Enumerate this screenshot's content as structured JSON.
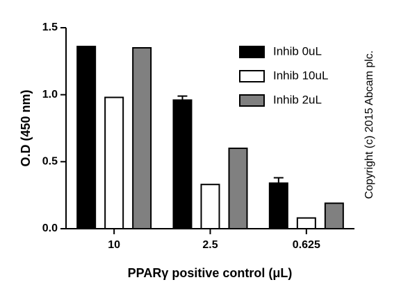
{
  "chart_data": {
    "type": "bar",
    "y_label": "O.D (450 nm)",
    "x_label": "PPARγ positive control (μL)",
    "annotation": "Copyright (c) 2015 Abcam plc.",
    "categories": [
      "10",
      "2.5",
      "0.625"
    ],
    "series": [
      {
        "name": "Inhib 0uL",
        "color": "#000000",
        "values": [
          1.36,
          0.96,
          0.34
        ],
        "errors": [
          null,
          0.03,
          0.04
        ]
      },
      {
        "name": "Inhib 10uL",
        "color": "#ffffff",
        "values": [
          0.98,
          0.33,
          0.08
        ]
      },
      {
        "name": "Inhib 2uL",
        "color": "#808080",
        "values": [
          1.35,
          0.6,
          0.19
        ]
      }
    ],
    "ylim": [
      0,
      1.5
    ],
    "yticks": [
      {
        "value": 0,
        "label": "0.0"
      },
      0.5,
      {
        "value": 1,
        "label": "1.0"
      },
      {
        "value": 1.5,
        "label": "1.5"
      }
    ],
    "legend": "upper right"
  }
}
